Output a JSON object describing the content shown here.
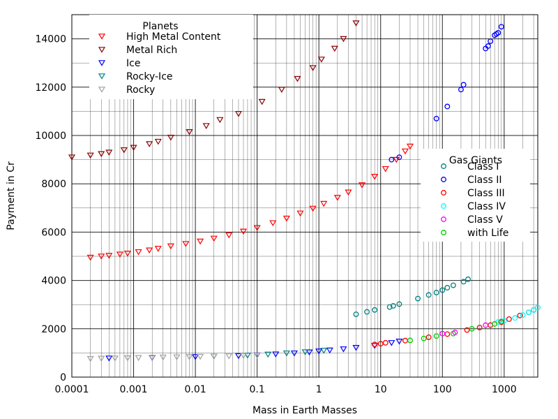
{
  "chart_data": {
    "type": "scatter",
    "x_scale": "log",
    "xlabel": "Mass in Earth Masses",
    "ylabel": "Payment in Cr",
    "xlim": [
      0.0001,
      3500
    ],
    "ylim": [
      0,
      15000
    ],
    "grid": true,
    "x_ticks": [
      "0.0001",
      "0.001",
      "0.01",
      "0.1",
      "1",
      "10",
      "100",
      "1000"
    ],
    "y_ticks": [
      "0",
      "2000",
      "4000",
      "6000",
      "8000",
      "10000",
      "12000",
      "14000"
    ],
    "legends": [
      {
        "title": "Planets",
        "placement": "top-left",
        "entries": [
          "High Metal Content",
          "Metal Rich",
          "Ice",
          "Rocky-Ice",
          "Rocky"
        ]
      },
      {
        "title": "Gas Giants",
        "placement": "right",
        "entries": [
          "Class I",
          "Class II",
          "Class III",
          "Class IV",
          "Class V",
          "with Life"
        ]
      }
    ],
    "series": [
      {
        "name": "High Metal Content",
        "marker": "triangle-down",
        "color": "#ff0000",
        "x": [
          0.0002,
          0.0003,
          0.0004,
          0.0006,
          0.0008,
          0.0012,
          0.0018,
          0.0025,
          0.004,
          0.007,
          0.012,
          0.02,
          0.035,
          0.06,
          0.1,
          0.18,
          0.3,
          0.5,
          0.8,
          1.2,
          2.0,
          3.0,
          5.0,
          8.0,
          12,
          18,
          25,
          30
        ],
        "y": [
          4950,
          5000,
          5030,
          5080,
          5120,
          5180,
          5250,
          5320,
          5420,
          5520,
          5620,
          5740,
          5880,
          6030,
          6180,
          6380,
          6570,
          6780,
          6980,
          7180,
          7430,
          7650,
          7950,
          8300,
          8620,
          9000,
          9350,
          9550
        ]
      },
      {
        "name": "Metal Rich",
        "marker": "triangle-down",
        "color": "#8b0000",
        "x": [
          0.0001,
          0.0002,
          0.0003,
          0.0004,
          0.0007,
          0.001,
          0.0018,
          0.0025,
          0.004,
          0.008,
          0.015,
          0.025,
          0.05,
          0.12,
          0.25,
          0.45,
          0.8,
          1.1,
          1.8,
          2.5,
          4.0
        ],
        "y": [
          9100,
          9180,
          9240,
          9300,
          9400,
          9500,
          9650,
          9750,
          9920,
          10150,
          10400,
          10650,
          10900,
          11400,
          11900,
          12350,
          12800,
          13150,
          13600,
          14000,
          14650
        ]
      },
      {
        "name": "Ice",
        "marker": "triangle-down",
        "color": "#0000ff",
        "x": [
          0.0004,
          0.002,
          0.01,
          0.05,
          0.1,
          0.2,
          0.4,
          0.7,
          1.0,
          1.5,
          2.5,
          4.0,
          8.0,
          15,
          20
        ],
        "y": [
          780,
          800,
          840,
          880,
          910,
          950,
          990,
          1030,
          1070,
          1110,
          1160,
          1220,
          1300,
          1420,
          1480
        ]
      },
      {
        "name": "Rocky-Ice",
        "marker": "triangle-down",
        "color": "#008080",
        "x": [
          0.02,
          0.07,
          0.15,
          0.3,
          0.6,
          1.2
        ],
        "y": [
          860,
          900,
          940,
          990,
          1040,
          1100
        ]
      },
      {
        "name": "Rocky",
        "marker": "triangle-down",
        "color": "#a0a0a0",
        "x": [
          0.0002,
          0.0003,
          0.0005,
          0.0008,
          0.0012,
          0.002,
          0.003,
          0.005,
          0.008,
          0.012,
          0.02,
          0.035,
          0.06,
          0.1
        ],
        "y": [
          760,
          770,
          780,
          790,
          800,
          810,
          820,
          830,
          840,
          850,
          860,
          870,
          890,
          900
        ]
      },
      {
        "name": "Class I",
        "marker": "circle",
        "color": "#008080",
        "x": [
          4,
          6,
          8,
          14,
          16,
          20,
          40,
          60,
          80,
          100,
          120,
          150,
          220,
          260
        ],
        "y": [
          2600,
          2700,
          2780,
          2900,
          2950,
          3020,
          3250,
          3400,
          3500,
          3600,
          3700,
          3800,
          3950,
          4050
        ]
      },
      {
        "name": "Class II",
        "marker": "circle",
        "color": "#0000ff",
        "x": [
          15,
          20,
          80,
          120,
          200,
          220,
          500,
          550,
          600,
          700,
          750,
          800,
          900
        ],
        "y": [
          9000,
          9100,
          10700,
          11200,
          11900,
          12100,
          13600,
          13700,
          13900,
          14150,
          14200,
          14250,
          14500
        ]
      },
      {
        "name": "Class III",
        "marker": "circle",
        "color": "#ff0000",
        "x": [
          8,
          10,
          12,
          25,
          60,
          120,
          250,
          400,
          600,
          900,
          1200,
          1800,
          2500,
          3000
        ],
        "y": [
          1350,
          1380,
          1420,
          1510,
          1650,
          1780,
          1950,
          2050,
          2150,
          2270,
          2400,
          2550,
          2680,
          2780
        ]
      },
      {
        "name": "Class IV",
        "marker": "circle",
        "color": "#00ffff",
        "x": [
          800,
          1000,
          1500,
          2000,
          2500,
          3000,
          3500
        ],
        "y": [
          2280,
          2330,
          2450,
          2570,
          2680,
          2780,
          2880
        ]
      },
      {
        "name": "Class V",
        "marker": "circle",
        "color": "#ff00ff",
        "x": [
          100,
          160,
          500
        ],
        "y": [
          1800,
          1850,
          2150
        ]
      },
      {
        "name": "with Life",
        "marker": "circle",
        "color": "#00cc00",
        "x": [
          30,
          50,
          80,
          150,
          300,
          700,
          900
        ],
        "y": [
          1520,
          1600,
          1700,
          1800,
          2000,
          2200,
          2300
        ]
      }
    ]
  }
}
